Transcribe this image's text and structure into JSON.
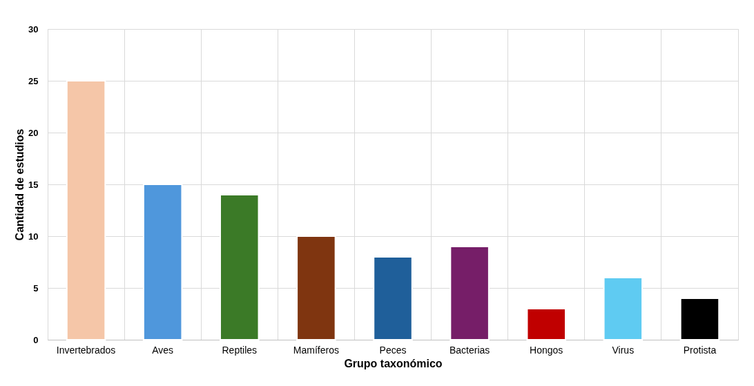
{
  "chart_data": {
    "type": "bar",
    "xlabel": "Grupo taxonómico",
    "ylabel": "Cantidad de estudios",
    "categories": [
      "Invertebrados",
      "Aves",
      "Reptiles",
      "Mamíferos",
      "Peces",
      "Bacterias",
      "Hongos",
      "Virus",
      "Protista"
    ],
    "values": [
      25,
      15,
      14,
      10,
      8,
      9,
      3,
      6,
      4
    ],
    "colors": [
      "#f5c6a8",
      "#4f97dc",
      "#3b7a27",
      "#7f3510",
      "#1f5f9a",
      "#761e68",
      "#c00000",
      "#5fcbf2",
      "#000000"
    ],
    "ylim": [
      0,
      30
    ],
    "yticks": [
      0,
      5,
      10,
      15,
      20,
      25,
      30
    ],
    "grid": true
  }
}
